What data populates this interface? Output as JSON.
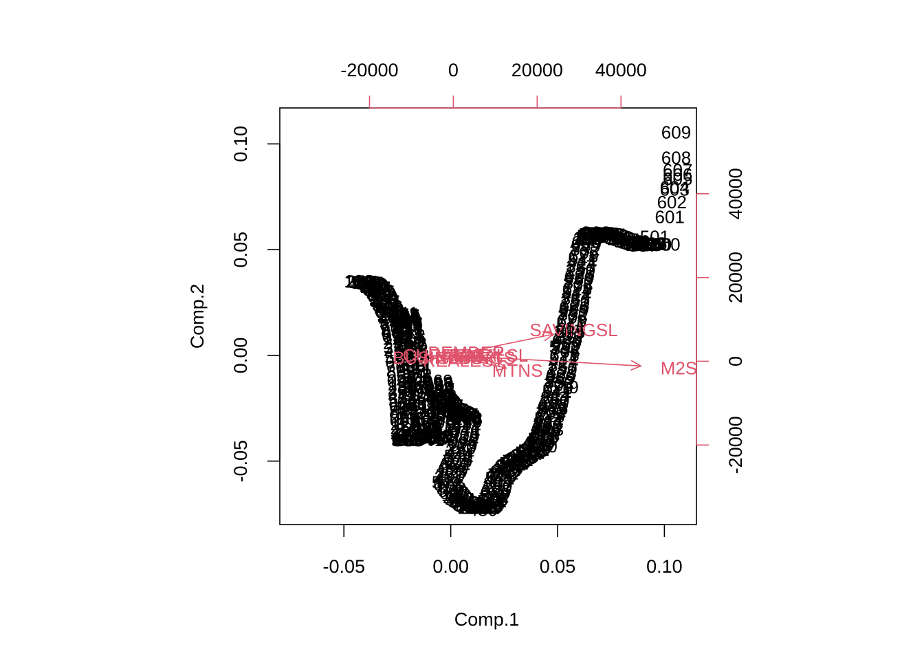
{
  "chart_data": {
    "type": "scatter",
    "subtype": "biplot",
    "xlabel": "Comp.1",
    "ylabel": "Comp.2",
    "xlim": [
      -0.08,
      0.115
    ],
    "ylim": [
      -0.08,
      0.117
    ],
    "x_ticks": [
      "-0.05",
      "0.00",
      "0.05",
      "0.10"
    ],
    "y_ticks": [
      "-0.05",
      "0.00",
      "0.05",
      "0.10"
    ],
    "top_ticks": [
      "-20000",
      "0",
      "20000",
      "40000"
    ],
    "right_ticks": [
      "-20000",
      "0",
      "20000",
      "40000"
    ],
    "secondary_lim_x": [
      -41400,
      58000
    ],
    "secondary_lim_y": [
      -39000,
      60500
    ],
    "accent_color": "#DF536B",
    "point_color": "#000000",
    "labeled_points": [
      {
        "label": "609",
        "x": 0.1055,
        "y": 0.1055
      },
      {
        "label": "608",
        "x": 0.1055,
        "y": 0.0935
      },
      {
        "label": "607",
        "x": 0.1062,
        "y": 0.0875
      },
      {
        "label": "606",
        "x": 0.1062,
        "y": 0.0855
      },
      {
        "label": "605",
        "x": 0.1062,
        "y": 0.0835
      },
      {
        "label": "604",
        "x": 0.1048,
        "y": 0.0795
      },
      {
        "label": "603",
        "x": 0.1048,
        "y": 0.0785
      },
      {
        "label": "602",
        "x": 0.1035,
        "y": 0.0725
      },
      {
        "label": "601",
        "x": 0.1025,
        "y": 0.0655
      },
      {
        "label": "600",
        "x": 0.1005,
        "y": 0.0525
      },
      {
        "label": "501",
        "x": 0.0955,
        "y": 0.056
      },
      {
        "label": "530",
        "x": 0.0965,
        "y": 0.0525
      },
      {
        "label": "525",
        "x": 0.056,
        "y": 0.011
      },
      {
        "label": "522",
        "x": 0.053,
        "y": 0.004
      },
      {
        "label": "519",
        "x": 0.053,
        "y": -0.015
      },
      {
        "label": "516",
        "x": 0.048,
        "y": -0.025
      },
      {
        "label": "513",
        "x": 0.046,
        "y": -0.035
      },
      {
        "label": "510",
        "x": 0.043,
        "y": -0.043
      },
      {
        "label": "480",
        "x": 0.015,
        "y": -0.073
      },
      {
        "label": "298",
        "x": -0.018,
        "y": -0.038
      }
    ],
    "variables": [
      {
        "name": "SAVINGSL",
        "x": 0.048,
        "y": 0.01
      },
      {
        "name": "M2S",
        "x": 0.089,
        "y": -0.005
      },
      {
        "name": "MTNS",
        "x": 0.026,
        "y": -0.006
      },
      {
        "name": "BUSINESS",
        "x": -0.005,
        "y": -0.001
      },
      {
        "name": "TOTALSL",
        "x": 0.015,
        "y": 0.0
      },
      {
        "name": "CURRENCY",
        "x": 0.001,
        "y": 0.0
      },
      {
        "name": "DEMDEP",
        "x": 0.006,
        "y": 0.001
      },
      {
        "name": "SAVINGS",
        "x": 0.01,
        "y": -0.001
      },
      {
        "name": "REALEST",
        "x": 0.005,
        "y": -0.002
      }
    ]
  }
}
